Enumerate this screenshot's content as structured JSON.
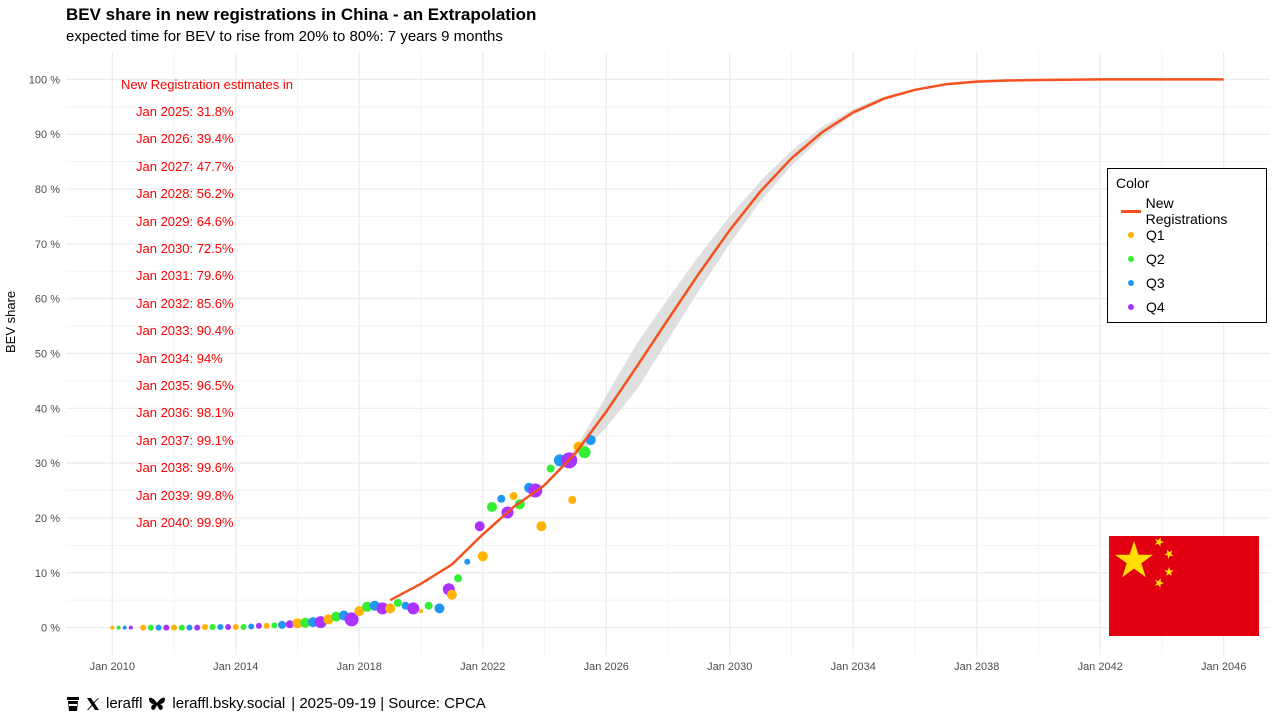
{
  "chart_data": {
    "type": "scatter",
    "title": "BEV share in new registrations in China - an Extrapolation",
    "subtitle": "expected time for BEV to rise from 20% to 80%: 7 years 9 months",
    "xlabel": "",
    "ylabel": "BEV share",
    "x_ticks": [
      "Jan 2010",
      "Jan 2014",
      "Jan 2018",
      "Jan 2022",
      "Jan 2026",
      "Jan 2030",
      "Jan 2034",
      "Jan 2038",
      "Jan 2042",
      "Jan 2046"
    ],
    "x_tick_values": [
      2010,
      2014,
      2018,
      2022,
      2026,
      2030,
      2034,
      2038,
      2042,
      2046
    ],
    "xlim": [
      2008.5,
      2047.5
    ],
    "y_ticks": [
      "0 %",
      "10 %",
      "20 %",
      "30 %",
      "40 %",
      "50 %",
      "60 %",
      "70 %",
      "80 %",
      "90 %",
      "100 %"
    ],
    "y_tick_values": [
      0,
      10,
      20,
      30,
      40,
      50,
      60,
      70,
      80,
      90,
      100
    ],
    "ylim": [
      -5,
      105
    ],
    "grid": true,
    "legend": {
      "title": "Color",
      "placement": "right",
      "entries": [
        {
          "label": "New Registrations",
          "color": "#f4511e",
          "kind": "line"
        },
        {
          "label": "Q1",
          "color": "#ffb300",
          "kind": "point"
        },
        {
          "label": "Q2",
          "color": "#33ee33",
          "kind": "point"
        },
        {
          "label": "Q3",
          "color": "#2196f3",
          "kind": "point"
        },
        {
          "label": "Q4",
          "color": "#aa33ff",
          "kind": "point"
        }
      ]
    },
    "fit": {
      "name": "New Registrations",
      "color": "#f4511e",
      "band_color": "#d9d9d9",
      "x": [
        2019.0,
        2020.0,
        2021.0,
        2022.0,
        2023.0,
        2024.0,
        2025.0,
        2026.0,
        2027.0,
        2028.0,
        2029.0,
        2030.0,
        2031.0,
        2032.0,
        2033.0,
        2034.0,
        2035.0,
        2036.0,
        2037.0,
        2038.0,
        2039.0,
        2040.0,
        2042.0,
        2044.0,
        2046.0
      ],
      "y": [
        5,
        8,
        11.5,
        17,
        22,
        26,
        31.8,
        39.4,
        47.7,
        56.2,
        64.6,
        72.5,
        79.6,
        85.6,
        90.4,
        94,
        96.5,
        98.1,
        99.1,
        99.6,
        99.8,
        99.9,
        100,
        100,
        100
      ],
      "band_lower": [
        5,
        8,
        11.5,
        17,
        22,
        26,
        31.0,
        36.5,
        43.5,
        52.5,
        61.5,
        70.0,
        77.8,
        84.3,
        89.5,
        93.5,
        96.2,
        97.9,
        99.0,
        99.5,
        99.8,
        99.9,
        100,
        100,
        100
      ],
      "band_upper": [
        5,
        8,
        11.5,
        17,
        22,
        26,
        32.6,
        42.3,
        51.9,
        60.0,
        67.8,
        75.0,
        81.5,
        87.0,
        91.4,
        94.6,
        96.9,
        98.3,
        99.2,
        99.7,
        99.9,
        99.95,
        100,
        100,
        100
      ]
    },
    "points": [
      {
        "x": 2010.0,
        "y": 0.0,
        "q": "Q1",
        "s": 2
      },
      {
        "x": 2010.2,
        "y": 0.0,
        "q": "Q2",
        "s": 2
      },
      {
        "x": 2010.4,
        "y": 0.0,
        "q": "Q3",
        "s": 2
      },
      {
        "x": 2010.6,
        "y": 0.0,
        "q": "Q4",
        "s": 2
      },
      {
        "x": 2011.0,
        "y": 0.0,
        "q": "Q1",
        "s": 3
      },
      {
        "x": 2011.25,
        "y": 0.0,
        "q": "Q2",
        "s": 3
      },
      {
        "x": 2011.5,
        "y": 0.0,
        "q": "Q3",
        "s": 3
      },
      {
        "x": 2011.75,
        "y": 0.0,
        "q": "Q4",
        "s": 3
      },
      {
        "x": 2012.0,
        "y": 0.0,
        "q": "Q1",
        "s": 3
      },
      {
        "x": 2012.25,
        "y": 0.0,
        "q": "Q2",
        "s": 3
      },
      {
        "x": 2012.5,
        "y": 0.0,
        "q": "Q3",
        "s": 3
      },
      {
        "x": 2012.75,
        "y": 0.0,
        "q": "Q4",
        "s": 3
      },
      {
        "x": 2013.0,
        "y": 0.1,
        "q": "Q1",
        "s": 3
      },
      {
        "x": 2013.25,
        "y": 0.1,
        "q": "Q2",
        "s": 3
      },
      {
        "x": 2013.5,
        "y": 0.1,
        "q": "Q3",
        "s": 3
      },
      {
        "x": 2013.75,
        "y": 0.1,
        "q": "Q4",
        "s": 3
      },
      {
        "x": 2014.0,
        "y": 0.1,
        "q": "Q1",
        "s": 3
      },
      {
        "x": 2014.25,
        "y": 0.1,
        "q": "Q2",
        "s": 3
      },
      {
        "x": 2014.5,
        "y": 0.2,
        "q": "Q3",
        "s": 3
      },
      {
        "x": 2014.75,
        "y": 0.3,
        "q": "Q4",
        "s": 3
      },
      {
        "x": 2015.0,
        "y": 0.3,
        "q": "Q1",
        "s": 3
      },
      {
        "x": 2015.25,
        "y": 0.4,
        "q": "Q2",
        "s": 3
      },
      {
        "x": 2015.5,
        "y": 0.5,
        "q": "Q3",
        "s": 4
      },
      {
        "x": 2015.75,
        "y": 0.6,
        "q": "Q4",
        "s": 4
      },
      {
        "x": 2016.0,
        "y": 0.8,
        "q": "Q1",
        "s": 5
      },
      {
        "x": 2016.25,
        "y": 0.9,
        "q": "Q2",
        "s": 5
      },
      {
        "x": 2016.5,
        "y": 1.0,
        "q": "Q3",
        "s": 5
      },
      {
        "x": 2016.75,
        "y": 1.0,
        "q": "Q4",
        "s": 6
      },
      {
        "x": 2017.0,
        "y": 1.5,
        "q": "Q1",
        "s": 5
      },
      {
        "x": 2017.25,
        "y": 2.0,
        "q": "Q2",
        "s": 5
      },
      {
        "x": 2017.5,
        "y": 2.2,
        "q": "Q3",
        "s": 5
      },
      {
        "x": 2017.75,
        "y": 1.5,
        "q": "Q4",
        "s": 7
      },
      {
        "x": 2018.0,
        "y": 3.0,
        "q": "Q1",
        "s": 5
      },
      {
        "x": 2018.25,
        "y": 3.8,
        "q": "Q2",
        "s": 5
      },
      {
        "x": 2018.5,
        "y": 4.0,
        "q": "Q3",
        "s": 5
      },
      {
        "x": 2018.75,
        "y": 3.5,
        "q": "Q4",
        "s": 6
      },
      {
        "x": 2019.0,
        "y": 3.5,
        "q": "Q1",
        "s": 5
      },
      {
        "x": 2019.25,
        "y": 4.5,
        "q": "Q2",
        "s": 4
      },
      {
        "x": 2019.5,
        "y": 4.0,
        "q": "Q3",
        "s": 4
      },
      {
        "x": 2019.75,
        "y": 3.5,
        "q": "Q4",
        "s": 6
      },
      {
        "x": 2020.0,
        "y": 3.0,
        "q": "Q1",
        "s": 2
      },
      {
        "x": 2020.25,
        "y": 4.0,
        "q": "Q2",
        "s": 4
      },
      {
        "x": 2020.6,
        "y": 3.5,
        "q": "Q3",
        "s": 5
      },
      {
        "x": 2020.9,
        "y": 7.0,
        "q": "Q4",
        "s": 6
      },
      {
        "x": 2021.0,
        "y": 6.0,
        "q": "Q1",
        "s": 5
      },
      {
        "x": 2021.2,
        "y": 9.0,
        "q": "Q2",
        "s": 4
      },
      {
        "x": 2021.5,
        "y": 12.0,
        "q": "Q3",
        "s": 3
      },
      {
        "x": 2021.9,
        "y": 18.5,
        "q": "Q4",
        "s": 5
      },
      {
        "x": 2022.0,
        "y": 13.0,
        "q": "Q1",
        "s": 5
      },
      {
        "x": 2022.3,
        "y": 22.0,
        "q": "Q2",
        "s": 5
      },
      {
        "x": 2022.6,
        "y": 23.5,
        "q": "Q3",
        "s": 4
      },
      {
        "x": 2022.8,
        "y": 21.0,
        "q": "Q4",
        "s": 6
      },
      {
        "x": 2023.0,
        "y": 24.0,
        "q": "Q1",
        "s": 4
      },
      {
        "x": 2023.2,
        "y": 22.5,
        "q": "Q2",
        "s": 5
      },
      {
        "x": 2023.5,
        "y": 25.5,
        "q": "Q3",
        "s": 5
      },
      {
        "x": 2023.7,
        "y": 25.0,
        "q": "Q4",
        "s": 7
      },
      {
        "x": 2023.9,
        "y": 18.5,
        "q": "Q1",
        "s": 5
      },
      {
        "x": 2024.2,
        "y": 29.0,
        "q": "Q2",
        "s": 4
      },
      {
        "x": 2024.5,
        "y": 30.5,
        "q": "Q3",
        "s": 6
      },
      {
        "x": 2024.8,
        "y": 30.5,
        "q": "Q4",
        "s": 8
      },
      {
        "x": 2024.9,
        "y": 23.3,
        "q": "Q1",
        "s": 4
      },
      {
        "x": 2025.1,
        "y": 33.0,
        "q": "Q1",
        "s": 5
      },
      {
        "x": 2025.3,
        "y": 32.0,
        "q": "Q2",
        "s": 6
      },
      {
        "x": 2025.5,
        "y": 34.2,
        "q": "Q3",
        "s": 5
      }
    ],
    "annotations": {
      "heading": "New Registration estimates in",
      "items": [
        "Jan 2025: 31.8%",
        "Jan 2026: 39.4%",
        "Jan 2027: 47.7%",
        "Jan 2028: 56.2%",
        "Jan 2029: 64.6%",
        "Jan 2030: 72.5%",
        "Jan 2031: 79.6%",
        "Jan 2032: 85.6%",
        "Jan 2033: 90.4%",
        "Jan 2034: 94%",
        "Jan 2035: 96.5%",
        "Jan 2036: 98.1%",
        "Jan 2037: 99.1%",
        "Jan 2038: 99.6%",
        "Jan 2039: 99.8%",
        "Jan 2040: 99.9%"
      ]
    }
  },
  "caption": {
    "handle_x": "leraffl",
    "handle_bsky": "leraffl.bsky.social",
    "rest": "| 2025-09-19 | Source: CPCA",
    "icons": [
      "coffee-icon",
      "x-logo-icon",
      "butterfly-icon"
    ]
  },
  "colors": {
    "flag_red": "#e00012",
    "flag_yellow": "#ffde00",
    "grid": "#ebebeb"
  }
}
